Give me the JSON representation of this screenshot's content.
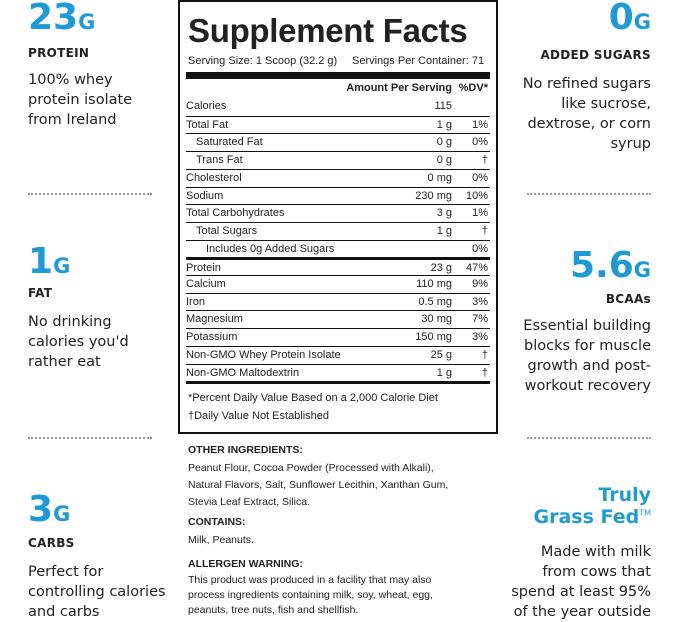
{
  "left": [
    {
      "value": "23",
      "unit": "G",
      "label": "PROTEIN",
      "lines": [
        "100% whey",
        "protein isolate",
        "from Ireland"
      ]
    },
    {
      "value": "1",
      "unit": "G",
      "label": "FAT",
      "lines": [
        "No drinking",
        "calories you'd",
        "rather eat"
      ]
    },
    {
      "value": "3",
      "unit": "G",
      "label": "CARBS",
      "lines": [
        "Perfect for",
        "controlling calories",
        "and carbs"
      ]
    }
  ],
  "right": [
    {
      "value": "0",
      "unit": "G",
      "label": "ADDED SUGARS",
      "lines": [
        "No refined sugars",
        "like sucrose,",
        "dextrose, or corn",
        "syrup"
      ]
    },
    {
      "value": "5.6",
      "unit": "G",
      "label": "BCAAs",
      "lines": [
        "Essential building",
        "blocks for muscle",
        "growth and post-",
        "workout recovery"
      ]
    },
    {
      "heading": [
        "Truly",
        "Grass Fed"
      ],
      "mark": "TM",
      "lines": [
        "Made with milk",
        "from cows that",
        "spend at least 95%",
        "of the year outside"
      ]
    }
  ],
  "facts": {
    "title": "Supplement Facts",
    "serving_size": "Serving Size: 1 Scoop (32.2 g)",
    "servings_per_container": "Servings Per Container: 71",
    "amount_header": "Amount Per Serving",
    "dv_header": "%DV*",
    "rows": [
      [
        "Calories",
        "115",
        null
      ],
      [
        "Total Fat",
        "1 g",
        "1%"
      ],
      [
        "Saturated Fat",
        "0 g",
        "0%"
      ],
      [
        "Trans Fat",
        "0 g",
        "†"
      ],
      [
        "Cholesterol",
        "0 mg",
        "0%"
      ],
      [
        "Sodium",
        "230 mg",
        "10%"
      ],
      [
        "Total Carbohydrates",
        "3 g",
        "1%"
      ],
      [
        "Total Sugars",
        "1 g",
        "†"
      ],
      [
        "Includes 0g Added Sugars",
        null,
        "0%"
      ],
      [
        "Protein",
        "23 g",
        "47%"
      ],
      [
        "Calcium",
        "110 mg",
        "9%"
      ],
      [
        "Iron",
        "0.5 mg",
        "3%"
      ],
      [
        "Magnesium",
        "30 mg",
        "7%"
      ],
      [
        "Potassium",
        "150 mg",
        "3%"
      ],
      [
        "Non-GMO Whey Protein Isolate",
        "25 g",
        "†"
      ],
      [
        "Non-GMO Maltodextrin",
        "1 g",
        "†"
      ]
    ],
    "footnotes": [
      "*Percent Daily Value Based on a 2,000 Calorie Diet",
      "†Daily Value Not Established"
    ]
  },
  "ingredients": {
    "other_title": "OTHER INGREDIENTS:",
    "other_lines": [
      "Peanut Flour, Cocoa Powder (Processed with Alkali),",
      "Natural Flavors, Salt, Sunflower Lecithin, Xanthan Gum,",
      "Stevia Leaf Extract, Silica."
    ],
    "contains_title": "CONTAINS:",
    "contains": "Milk, Peanuts.",
    "allergen_title": "ALLERGEN WARNING:",
    "allergen_lines": [
      "This product was produced in a facility that may also",
      "process ingredients containing milk, soy, wheat, egg,",
      "peanuts, tree nuts, fish and shellfish."
    ]
  }
}
